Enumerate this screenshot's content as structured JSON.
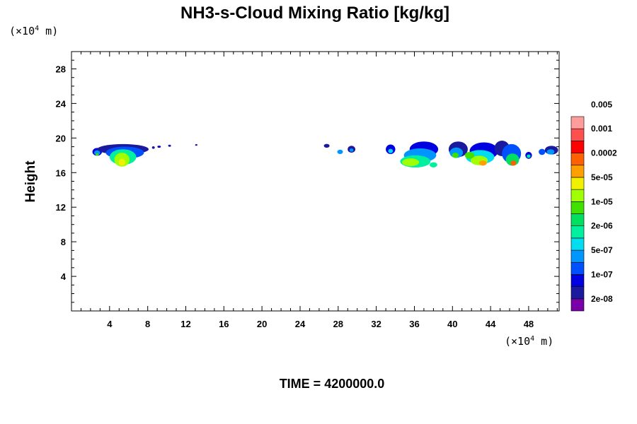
{
  "chart_data": {
    "type": "heatmap",
    "title": "NH3-s-Cloud Mixing Ratio [kg/kg]",
    "ylabel": "Height",
    "xlabel": "",
    "x_unit_prefix": "(×10",
    "x_unit_exp": "4",
    "x_unit_suffix": " m)",
    "y_unit_prefix": "(×10",
    "y_unit_exp": "4",
    "y_unit_suffix": " m)",
    "footer": "TIME = 4200000.0",
    "xlim": [
      0,
      51.2
    ],
    "ylim": [
      0,
      30
    ],
    "x_ticks": [
      4,
      8,
      12,
      16,
      20,
      24,
      28,
      32,
      36,
      40,
      44,
      48
    ],
    "y_ticks": [
      4,
      8,
      12,
      16,
      20,
      24,
      28
    ],
    "x_tick_labels": [
      "4",
      "8",
      "12",
      "16",
      "20",
      "24",
      "28",
      "32",
      "36",
      "40",
      "44",
      "48"
    ],
    "y_tick_labels": [
      "4",
      "8",
      "12",
      "16",
      "20",
      "24",
      "28"
    ],
    "colorbar": {
      "colors": [
        "#7a00a8",
        "#1a1a9e",
        "#0000e0",
        "#0050ff",
        "#0096ff",
        "#00dcf0",
        "#00f0a0",
        "#00e060",
        "#40e000",
        "#a0ff00",
        "#f0f000",
        "#ffa000",
        "#ff6000",
        "#ff0000",
        "#ff5050",
        "#ff9c9c"
      ],
      "labels": [
        "2e-08",
        "1e-07",
        "5e-07",
        "2e-06",
        "1e-05",
        "5e-05",
        "0.0002",
        "0.001",
        "0.005"
      ],
      "label_levels": [
        1,
        3,
        5,
        7,
        9,
        11,
        13,
        15,
        17
      ]
    },
    "clouds": [
      {
        "x": 2.7,
        "y": 18.4,
        "rx": 0.5,
        "ry": 0.45,
        "level": 2
      },
      {
        "x": 2.7,
        "y": 18.3,
        "rx": 0.32,
        "ry": 0.28,
        "level": 4
      },
      {
        "x": 2.7,
        "y": 18.1,
        "rx": 0.16,
        "ry": 0.15,
        "level": 8
      },
      {
        "x": 5.4,
        "y": 18.7,
        "rx": 2.7,
        "ry": 0.6,
        "level": 1
      },
      {
        "x": 5.6,
        "y": 18.3,
        "rx": 2.0,
        "ry": 0.7,
        "level": 3
      },
      {
        "x": 5.4,
        "y": 17.8,
        "rx": 1.4,
        "ry": 0.9,
        "level": 6
      },
      {
        "x": 5.3,
        "y": 17.5,
        "rx": 0.8,
        "ry": 0.8,
        "level": 9
      },
      {
        "x": 5.3,
        "y": 17.2,
        "rx": 0.35,
        "ry": 0.4,
        "level": 10
      },
      {
        "x": 8.6,
        "y": 18.9,
        "rx": 0.15,
        "ry": 0.15,
        "level": 1
      },
      {
        "x": 9.2,
        "y": 19.0,
        "rx": 0.18,
        "ry": 0.12,
        "level": 2
      },
      {
        "x": 10.3,
        "y": 19.1,
        "rx": 0.15,
        "ry": 0.12,
        "level": 1
      },
      {
        "x": 13.1,
        "y": 19.2,
        "rx": 0.12,
        "ry": 0.1,
        "level": 1
      },
      {
        "x": 26.8,
        "y": 19.1,
        "rx": 0.3,
        "ry": 0.22,
        "level": 1
      },
      {
        "x": 28.2,
        "y": 18.4,
        "rx": 0.3,
        "ry": 0.25,
        "level": 4
      },
      {
        "x": 29.4,
        "y": 18.7,
        "rx": 0.4,
        "ry": 0.4,
        "level": 1
      },
      {
        "x": 29.4,
        "y": 18.6,
        "rx": 0.2,
        "ry": 0.2,
        "level": 4
      },
      {
        "x": 33.5,
        "y": 18.7,
        "rx": 0.5,
        "ry": 0.55,
        "level": 2
      },
      {
        "x": 33.5,
        "y": 18.5,
        "rx": 0.25,
        "ry": 0.25,
        "level": 5
      },
      {
        "x": 37.0,
        "y": 18.7,
        "rx": 1.5,
        "ry": 0.9,
        "level": 2
      },
      {
        "x": 36.6,
        "y": 18.0,
        "rx": 1.7,
        "ry": 0.8,
        "level": 4
      },
      {
        "x": 36.1,
        "y": 17.3,
        "rx": 1.6,
        "ry": 0.7,
        "level": 6
      },
      {
        "x": 35.6,
        "y": 17.2,
        "rx": 0.9,
        "ry": 0.45,
        "level": 9
      },
      {
        "x": 38.0,
        "y": 16.9,
        "rx": 0.4,
        "ry": 0.3,
        "level": 6
      },
      {
        "x": 40.6,
        "y": 18.7,
        "rx": 1.0,
        "ry": 0.9,
        "level": 1
      },
      {
        "x": 40.4,
        "y": 18.3,
        "rx": 0.7,
        "ry": 0.6,
        "level": 4
      },
      {
        "x": 40.3,
        "y": 18.0,
        "rx": 0.35,
        "ry": 0.3,
        "level": 8
      },
      {
        "x": 43.3,
        "y": 18.5,
        "rx": 1.5,
        "ry": 1.0,
        "level": 2
      },
      {
        "x": 42.9,
        "y": 17.8,
        "rx": 1.5,
        "ry": 0.8,
        "level": 5
      },
      {
        "x": 42.8,
        "y": 17.4,
        "rx": 0.9,
        "ry": 0.55,
        "level": 9
      },
      {
        "x": 43.2,
        "y": 17.1,
        "rx": 0.4,
        "ry": 0.3,
        "level": 11
      },
      {
        "x": 41.8,
        "y": 18.0,
        "rx": 0.5,
        "ry": 0.4,
        "level": 8
      },
      {
        "x": 45.2,
        "y": 18.8,
        "rx": 0.8,
        "ry": 0.9,
        "level": 1
      },
      {
        "x": 46.2,
        "y": 18.2,
        "rx": 1.0,
        "ry": 1.1,
        "level": 3
      },
      {
        "x": 46.3,
        "y": 17.5,
        "rx": 0.7,
        "ry": 0.7,
        "level": 7
      },
      {
        "x": 46.4,
        "y": 17.1,
        "rx": 0.3,
        "ry": 0.3,
        "level": 12
      },
      {
        "x": 48.0,
        "y": 18.0,
        "rx": 0.35,
        "ry": 0.4,
        "level": 2
      },
      {
        "x": 48.0,
        "y": 17.9,
        "rx": 0.2,
        "ry": 0.2,
        "level": 6
      },
      {
        "x": 49.4,
        "y": 18.4,
        "rx": 0.35,
        "ry": 0.35,
        "level": 3
      },
      {
        "x": 50.4,
        "y": 18.6,
        "rx": 0.7,
        "ry": 0.5,
        "level": 1
      },
      {
        "x": 50.3,
        "y": 18.4,
        "rx": 0.4,
        "ry": 0.3,
        "level": 4
      }
    ]
  }
}
